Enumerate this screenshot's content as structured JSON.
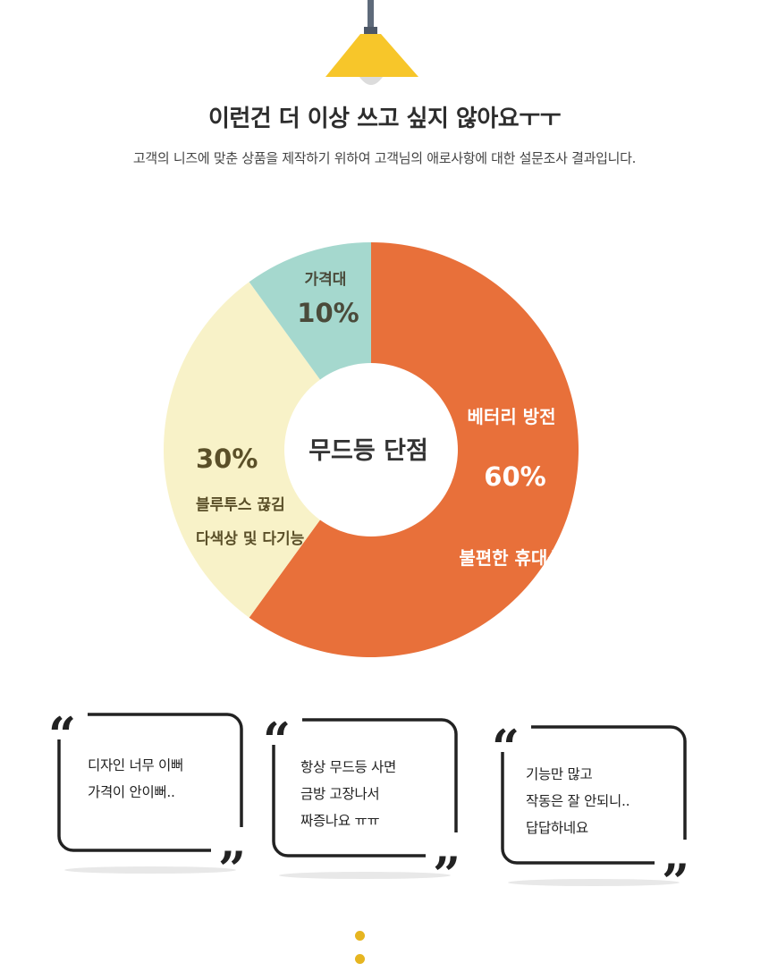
{
  "header": {
    "title": "이런건 더 이상 쓰고 싶지 않아요ㅜㅜ",
    "subtitle": "고객의 니즈에 맞춘 상품을 제작하기 위하여 고객님의 애로사항에 대한 설문조사 결과입니다."
  },
  "chart_data": {
    "type": "pie",
    "title": "무드등 단점",
    "slices": [
      {
        "label_lines": [
          "베터리 방전",
          "불편한 휴대성"
        ],
        "value": 60,
        "value_label": "60%",
        "color": "#e8703a"
      },
      {
        "label_lines": [
          "블루투스 끊김",
          "다색상 및 다기능"
        ],
        "value": 30,
        "value_label": "30%",
        "color": "#f8f2c8"
      },
      {
        "label_lines": [
          "가격대"
        ],
        "value": 10,
        "value_label": "10%",
        "color": "#a5d8ce"
      }
    ]
  },
  "testimonials": [
    {
      "lines": [
        "디자인 너무 이뻐",
        "가격이 안이뻐.."
      ]
    },
    {
      "lines": [
        "항상 무드등 사면",
        "금방 고장나서",
        "짜증나요 ㅠㅠ"
      ]
    },
    {
      "lines": [
        "기능만 많고",
        "작동은 잘 안되니..",
        "답답하네요"
      ]
    }
  ],
  "colors": {
    "lamp_shade": "#f7c62a",
    "lamp_cord": "#5e6a7a",
    "accent_dots": "#e6b520"
  }
}
